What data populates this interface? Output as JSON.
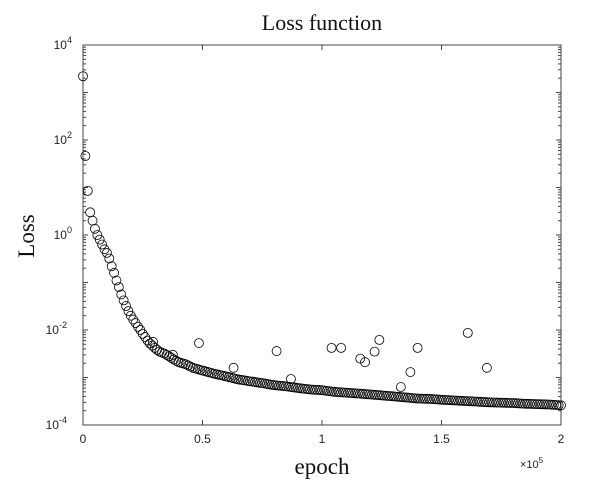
{
  "chart_data": {
    "type": "scatter",
    "title": "Loss function",
    "xlabel": "epoch",
    "ylabel": "Loss",
    "x_exponent_label": "×10",
    "x_exponent": "5",
    "xlim": [
      0,
      200000
    ],
    "ylim": [
      0.0001,
      10000
    ],
    "yscale": "log",
    "grid": false,
    "marker": "open-circle",
    "marker_color": "#000000",
    "x_ticks": [
      {
        "value": 0,
        "label": "0"
      },
      {
        "value": 50000,
        "label": "0.5"
      },
      {
        "value": 100000,
        "label": "1"
      },
      {
        "value": 150000,
        "label": "1.5"
      },
      {
        "value": 200000,
        "label": "2"
      }
    ],
    "y_ticks": [
      {
        "value": 0.0001,
        "base": "10",
        "exp": "-4"
      },
      {
        "value": 0.01,
        "base": "10",
        "exp": "-2"
      },
      {
        "value": 1,
        "base": "10",
        "exp": "0"
      },
      {
        "value": 100,
        "base": "10",
        "exp": "2"
      },
      {
        "value": 10000,
        "base": "10",
        "exp": "4"
      }
    ],
    "main_curve": [
      [
        0,
        2200
      ],
      [
        1000,
        46
      ],
      [
        2000,
        8.5
      ],
      [
        3000,
        3.0
      ],
      [
        4000,
        2.0
      ],
      [
        5000,
        1.35
      ],
      [
        6000,
        1.0
      ],
      [
        7000,
        0.8
      ],
      [
        8000,
        0.63
      ],
      [
        9000,
        0.5
      ],
      [
        10000,
        0.42
      ],
      [
        11000,
        0.32
      ],
      [
        12000,
        0.22
      ],
      [
        13000,
        0.16
      ],
      [
        14000,
        0.11
      ],
      [
        15000,
        0.08
      ],
      [
        16000,
        0.056
      ],
      [
        17000,
        0.042
      ],
      [
        18000,
        0.032
      ],
      [
        19000,
        0.025
      ],
      [
        20000,
        0.02
      ],
      [
        21000,
        0.0166
      ],
      [
        22000,
        0.014
      ],
      [
        23000,
        0.0117
      ],
      [
        24000,
        0.01
      ],
      [
        25000,
        0.0083
      ],
      [
        26000,
        0.0071
      ],
      [
        27000,
        0.006
      ],
      [
        28000,
        0.0052
      ],
      [
        29000,
        0.0047
      ],
      [
        30000,
        0.0042
      ],
      [
        32000,
        0.0035
      ],
      [
        34000,
        0.0032
      ],
      [
        36000,
        0.0028
      ],
      [
        38000,
        0.0024
      ],
      [
        40000,
        0.0021
      ],
      [
        43000,
        0.0019
      ],
      [
        46000,
        0.0016
      ],
      [
        50000,
        0.0014
      ],
      [
        55000,
        0.0012
      ],
      [
        60000,
        0.00105
      ],
      [
        65000,
        0.00091
      ],
      [
        70000,
        0.00083
      ],
      [
        75000,
        0.00076
      ],
      [
        80000,
        0.00069
      ],
      [
        85000,
        0.00065
      ],
      [
        90000,
        0.0006
      ],
      [
        95000,
        0.00056
      ],
      [
        100000,
        0.00054
      ],
      [
        105000,
        0.0005
      ],
      [
        110000,
        0.00048
      ],
      [
        115000,
        0.00046
      ],
      [
        120000,
        0.00044
      ],
      [
        125000,
        0.00042
      ],
      [
        130000,
        0.0004
      ],
      [
        135000,
        0.00038
      ],
      [
        140000,
        0.00036
      ],
      [
        145000,
        0.000355
      ],
      [
        150000,
        0.00034
      ],
      [
        155000,
        0.00033
      ],
      [
        160000,
        0.00032
      ],
      [
        165000,
        0.00031
      ],
      [
        170000,
        0.0003
      ],
      [
        175000,
        0.000295
      ],
      [
        180000,
        0.00029
      ],
      [
        185000,
        0.00028
      ],
      [
        190000,
        0.000275
      ],
      [
        195000,
        0.00027
      ],
      [
        200000,
        0.00026
      ]
    ],
    "outliers": [
      [
        29300,
        0.0056
      ],
      [
        37600,
        0.003
      ],
      [
        48500,
        0.0053
      ],
      [
        63000,
        0.0016
      ],
      [
        81000,
        0.0036
      ],
      [
        87000,
        0.00093
      ],
      [
        104000,
        0.0042
      ],
      [
        108000,
        0.0042
      ],
      [
        116000,
        0.0025
      ],
      [
        118000,
        0.0021
      ],
      [
        122000,
        0.0035
      ],
      [
        124000,
        0.0062
      ],
      [
        133000,
        0.00063
      ],
      [
        137000,
        0.0013
      ],
      [
        140000,
        0.0042
      ],
      [
        161000,
        0.0087
      ],
      [
        169000,
        0.0016
      ]
    ]
  }
}
